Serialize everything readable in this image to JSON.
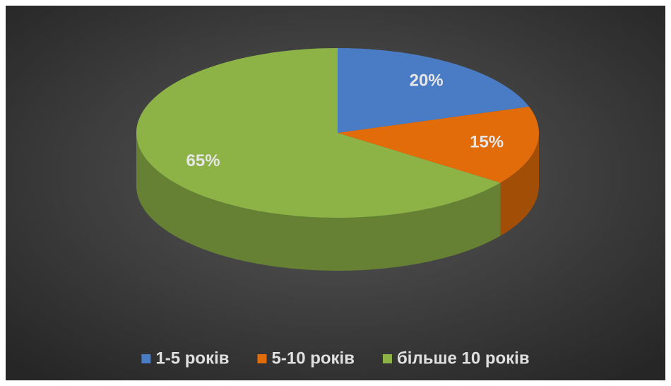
{
  "chart_data": {
    "type": "pie3d",
    "categories": [
      "1-5 років",
      "5-10 років",
      "більше 10 років"
    ],
    "values": [
      20,
      15,
      65
    ],
    "value_labels": [
      "20%",
      "15%",
      "65%"
    ],
    "colors": [
      "#4a7cc6",
      "#e36c0a",
      "#8db347"
    ],
    "legend": "bottom"
  }
}
